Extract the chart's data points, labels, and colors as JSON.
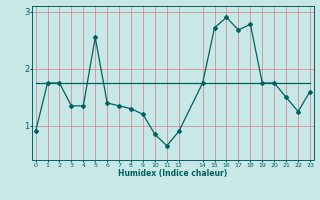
{
  "xlabel": "Humidex (Indice chaleur)",
  "background_color": "#c8e8e8",
  "grid_color": "#d09090",
  "line_color": "#006060",
  "x_ticks": [
    0,
    1,
    2,
    3,
    4,
    5,
    6,
    7,
    8,
    9,
    10,
    11,
    12,
    14,
    15,
    16,
    17,
    18,
    19,
    20,
    21,
    22,
    23
  ],
  "line1_x": [
    0,
    1,
    2,
    3,
    4,
    5,
    6,
    7,
    8,
    9,
    10,
    11,
    12,
    14,
    15,
    16,
    17,
    18,
    19,
    20,
    21,
    22,
    23
  ],
  "line1_y": [
    0.9,
    1.75,
    1.75,
    1.35,
    1.35,
    2.55,
    1.4,
    1.35,
    1.3,
    1.2,
    0.85,
    0.65,
    0.9,
    1.75,
    2.72,
    2.9,
    2.68,
    2.78,
    1.75,
    1.75,
    1.5,
    1.25,
    1.6
  ],
  "line2_x": [
    0,
    23
  ],
  "line2_y": [
    1.75,
    1.75
  ],
  "ylim": [
    0.4,
    3.1
  ],
  "yticks": [
    1,
    2,
    3
  ],
  "xlim": [
    -0.3,
    23.3
  ]
}
